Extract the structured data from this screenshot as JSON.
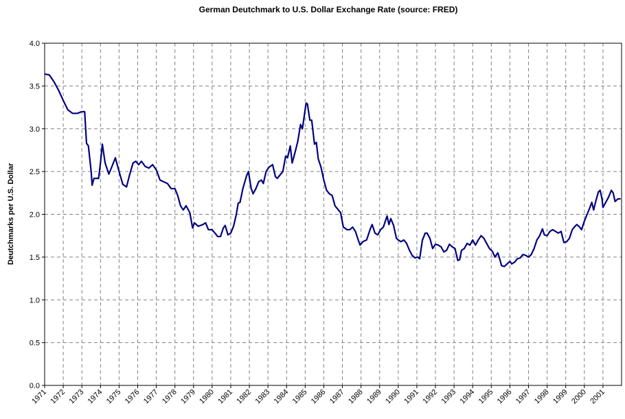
{
  "chart_data": {
    "type": "line",
    "title": "German Deutchmark to U.S. Dollar Exchange Rate (source:  FRED)",
    "y_label": "Deutchmarks per U.S. Dollar",
    "xlim": [
      1971,
      2002
    ],
    "xticks": [
      1971,
      1972,
      1973,
      1974,
      1975,
      1976,
      1977,
      1978,
      1979,
      1980,
      1981,
      1982,
      1983,
      1984,
      1985,
      1986,
      1987,
      1988,
      1989,
      1990,
      1991,
      1992,
      1993,
      1994,
      1995,
      1996,
      1997,
      1998,
      1999,
      2000,
      2001
    ],
    "ylim": [
      0,
      4
    ],
    "yticks": [
      {
        "value": 0,
        "label": "0.0"
      },
      {
        "value": 0.5,
        "label": "0.5"
      },
      {
        "value": 1,
        "label": "1.0"
      },
      {
        "value": 1.5,
        "label": "1.5"
      },
      {
        "value": 2,
        "label": "2.0"
      },
      {
        "value": 2.5,
        "label": "2.5"
      },
      {
        "value": 3,
        "label": "3.0"
      },
      {
        "value": 3.5,
        "label": "3.5"
      },
      {
        "value": 4,
        "label": "4.0"
      }
    ],
    "grid": true,
    "x": [
      1971.0,
      1971.25,
      1971.5,
      1971.75,
      1972.0,
      1972.25,
      1972.5,
      1972.75,
      1973.0,
      1973.15,
      1973.25,
      1973.35,
      1973.5,
      1973.55,
      1973.65,
      1973.9,
      1974.0,
      1974.1,
      1974.25,
      1974.45,
      1974.6,
      1974.8,
      1975.0,
      1975.2,
      1975.4,
      1975.55,
      1975.75,
      1975.9,
      1976.05,
      1976.2,
      1976.4,
      1976.6,
      1976.8,
      1977.0,
      1977.2,
      1977.4,
      1977.6,
      1977.8,
      1978.0,
      1978.15,
      1978.3,
      1978.45,
      1978.6,
      1978.8,
      1978.95,
      1979.05,
      1979.25,
      1979.5,
      1979.65,
      1979.8,
      1980.0,
      1980.15,
      1980.3,
      1980.45,
      1980.6,
      1980.7,
      1980.85,
      1981.0,
      1981.15,
      1981.3,
      1981.4,
      1981.5,
      1981.65,
      1981.85,
      1981.95,
      1982.1,
      1982.2,
      1982.35,
      1982.5,
      1982.65,
      1982.75,
      1982.9,
      1983.05,
      1983.25,
      1983.4,
      1983.5,
      1983.65,
      1983.8,
      1983.95,
      1984.05,
      1984.2,
      1984.3,
      1984.45,
      1984.6,
      1984.75,
      1984.85,
      1984.95,
      1985.05,
      1985.12,
      1985.25,
      1985.35,
      1985.5,
      1985.6,
      1985.7,
      1985.85,
      1986.0,
      1986.15,
      1986.3,
      1986.45,
      1986.6,
      1986.75,
      1986.9,
      1987.05,
      1987.25,
      1987.4,
      1987.55,
      1987.7,
      1987.85,
      1987.95,
      1988.1,
      1988.3,
      1988.5,
      1988.6,
      1988.75,
      1988.9,
      1989.05,
      1989.2,
      1989.4,
      1989.5,
      1989.6,
      1989.75,
      1989.9,
      1990.0,
      1990.15,
      1990.3,
      1990.45,
      1990.6,
      1990.75,
      1990.9,
      1991.05,
      1991.15,
      1991.3,
      1991.45,
      1991.55,
      1991.7,
      1991.85,
      1992.0,
      1992.15,
      1992.3,
      1992.45,
      1992.6,
      1992.75,
      1992.9,
      1993.05,
      1993.2,
      1993.3,
      1993.4,
      1993.55,
      1993.7,
      1993.85,
      1994.0,
      1994.15,
      1994.3,
      1994.45,
      1994.6,
      1994.75,
      1994.9,
      1995.05,
      1995.2,
      1995.35,
      1995.45,
      1995.55,
      1995.7,
      1995.85,
      1996.0,
      1996.1,
      1996.25,
      1996.4,
      1996.55,
      1996.7,
      1996.85,
      1997.0,
      1997.15,
      1997.3,
      1997.45,
      1997.6,
      1997.75,
      1997.85,
      1998.0,
      1998.15,
      1998.3,
      1998.45,
      1998.6,
      1998.75,
      1998.9,
      1999.05,
      1999.2,
      1999.35,
      1999.5,
      1999.6,
      1999.75,
      1999.85,
      2000.0,
      2000.15,
      2000.3,
      2000.4,
      2000.5,
      2000.6,
      2000.75,
      2000.85,
      2000.95,
      2001.0,
      2001.15,
      2001.3,
      2001.45,
      2001.55,
      2001.65,
      2001.8,
      2001.95
    ],
    "series": [
      {
        "name": "Deutchmarks per U.S. Dollar",
        "color": "#000080",
        "values": [
          3.64,
          3.63,
          3.55,
          3.45,
          3.33,
          3.22,
          3.18,
          3.18,
          3.2,
          3.2,
          2.83,
          2.8,
          2.5,
          2.34,
          2.42,
          2.42,
          2.6,
          2.82,
          2.6,
          2.47,
          2.55,
          2.66,
          2.5,
          2.35,
          2.32,
          2.45,
          2.6,
          2.62,
          2.58,
          2.62,
          2.56,
          2.54,
          2.58,
          2.52,
          2.4,
          2.38,
          2.36,
          2.3,
          2.3,
          2.22,
          2.1,
          2.05,
          2.1,
          2.02,
          1.84,
          1.9,
          1.86,
          1.88,
          1.9,
          1.82,
          1.82,
          1.78,
          1.74,
          1.74,
          1.84,
          1.87,
          1.76,
          1.78,
          1.86,
          2.0,
          2.13,
          2.14,
          2.3,
          2.45,
          2.5,
          2.3,
          2.24,
          2.3,
          2.38,
          2.4,
          2.36,
          2.5,
          2.55,
          2.58,
          2.44,
          2.42,
          2.46,
          2.5,
          2.68,
          2.66,
          2.8,
          2.6,
          2.72,
          2.85,
          3.05,
          3.0,
          3.15,
          3.3,
          3.29,
          3.1,
          3.1,
          2.82,
          2.84,
          2.65,
          2.55,
          2.4,
          2.28,
          2.24,
          2.22,
          2.1,
          2.06,
          2.02,
          1.85,
          1.82,
          1.82,
          1.85,
          1.8,
          1.7,
          1.64,
          1.68,
          1.7,
          1.83,
          1.88,
          1.78,
          1.76,
          1.82,
          1.85,
          1.98,
          1.88,
          1.95,
          1.87,
          1.72,
          1.7,
          1.68,
          1.7,
          1.66,
          1.58,
          1.52,
          1.49,
          1.5,
          1.48,
          1.7,
          1.78,
          1.78,
          1.72,
          1.6,
          1.65,
          1.64,
          1.62,
          1.56,
          1.58,
          1.65,
          1.62,
          1.6,
          1.46,
          1.47,
          1.58,
          1.6,
          1.66,
          1.64,
          1.7,
          1.64,
          1.7,
          1.75,
          1.72,
          1.66,
          1.6,
          1.57,
          1.5,
          1.55,
          1.48,
          1.4,
          1.39,
          1.42,
          1.45,
          1.42,
          1.44,
          1.48,
          1.49,
          1.53,
          1.52,
          1.5,
          1.53,
          1.6,
          1.7,
          1.75,
          1.83,
          1.76,
          1.75,
          1.8,
          1.82,
          1.8,
          1.78,
          1.8,
          1.67,
          1.68,
          1.72,
          1.82,
          1.86,
          1.88,
          1.85,
          1.82,
          1.92,
          2.0,
          2.08,
          2.14,
          2.05,
          2.14,
          2.26,
          2.28,
          2.18,
          2.08,
          2.14,
          2.2,
          2.28,
          2.25,
          2.15,
          2.18,
          2.18
        ]
      }
    ]
  }
}
